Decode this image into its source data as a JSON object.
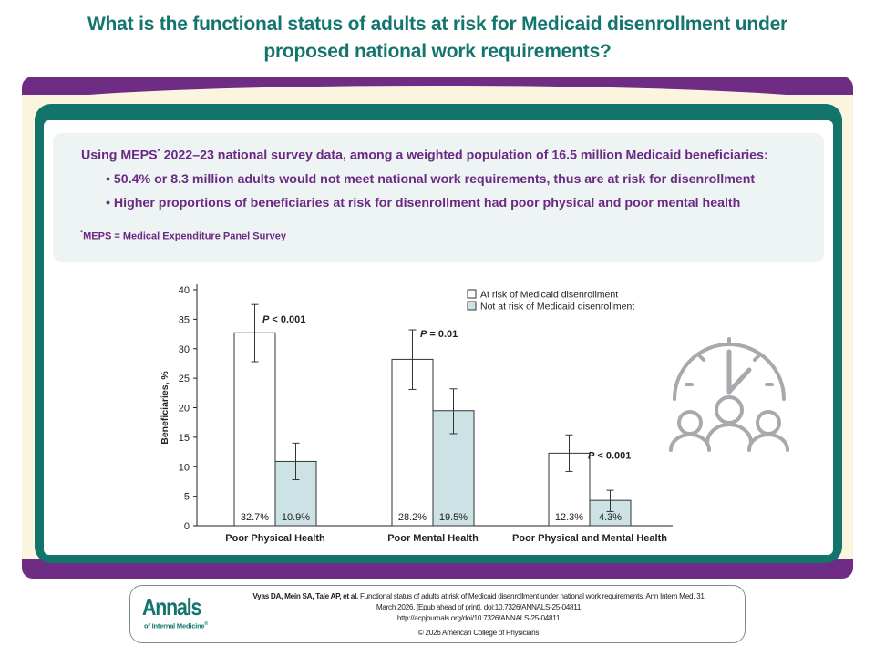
{
  "title_line1": "What is the functional status of adults at risk for Medicaid disenrollment under",
  "title_line2": "proposed national work requirements?",
  "summary": {
    "intro_pre": "Using MEPS",
    "intro_sup": "*",
    "intro_post": " 2022–23 national survey data, among a weighted population of 16.5 million Medicaid beneficiaries:",
    "bullet1": "• 50.4% or 8.3 million adults would not meet national work requirements, thus are at risk for disenrollment",
    "bullet2": "• Higher proportions of beneficiaries at risk for disenrollment had poor physical and poor mental health",
    "footnote_sup": "*",
    "footnote": "MEPS = Medical Expenditure Panel Survey"
  },
  "colors": {
    "title_teal": "#14756e",
    "purple": "#6f2c84",
    "teal_frame": "#13746c",
    "cream": "#fbf5e0",
    "summary_bg": "#eef3f4",
    "bar_not_at_risk": "#cde2e4",
    "bar_at_risk": "#ffffff",
    "icon_gray": "#a7a9ac"
  },
  "chart_data": {
    "type": "bar",
    "ylabel": "Beneficiaries, %",
    "ylim": [
      0,
      40
    ],
    "yticks": [
      0,
      5,
      10,
      15,
      20,
      25,
      30,
      35,
      40
    ],
    "categories": [
      "Poor Physical Health",
      "Poor Mental Health",
      "Poor Physical and Mental Health"
    ],
    "series": [
      {
        "name": "At risk of Medicaid disenrollment",
        "values": [
          32.7,
          28.2,
          12.3
        ],
        "labels": [
          "32.7%",
          "28.2%",
          "12.3%"
        ],
        "error_low": [
          27.8,
          23.1,
          9.2
        ],
        "error_high": [
          37.5,
          33.2,
          15.4
        ]
      },
      {
        "name": "Not at risk of Medicaid disenrollment",
        "values": [
          10.9,
          19.5,
          4.3
        ],
        "labels": [
          "10.9%",
          "19.5%",
          "4.3%"
        ],
        "error_low": [
          7.8,
          15.6,
          2.4
        ],
        "error_high": [
          14.0,
          23.2,
          6.0
        ]
      }
    ],
    "p_values": [
      {
        "pre": "P",
        "post": " < 0.001"
      },
      {
        "pre": "P",
        "post": " = 0.01"
      },
      {
        "pre": "P",
        "post": " < 0.001"
      }
    ],
    "legend_position": "top-right",
    "grid": false
  },
  "icon": "clock-people-icon",
  "logo": {
    "main": "Annals",
    "sub": "of Internal Medicine",
    "reg": "®"
  },
  "citation": {
    "authors": "Vyas DA, Mein SA, Tale AP, et al.",
    "line1_rest": " Functional status of adults at risk of Medicaid disenrollment under national work requirements. Ann Intern Med. 31",
    "line2": "March 2026. [Epub ahead of print]. doi:10.7326/ANNALS-25-04811",
    "line3": "http://acpjournals.org/doi/10.7326/ANNALS-25-04811",
    "line4": "© 2026 American College of Physicians"
  }
}
